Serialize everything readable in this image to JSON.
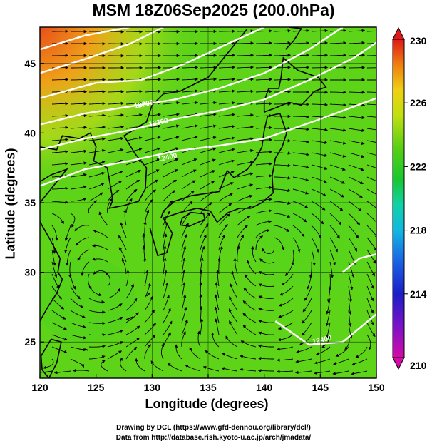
{
  "title": "MSM 18Z06Sep2025 (200.0hPa)",
  "chart_data": {
    "type": "heatmap",
    "title": "MSM 18Z06Sep2025 (200.0hPa)",
    "xlabel": "Longitude (degrees)",
    "ylabel": "Latitude  (degrees)",
    "xlim": [
      120,
      150
    ],
    "ylim": [
      22.4,
      47.6
    ],
    "x_ticks": [
      120,
      125,
      130,
      135,
      140,
      145,
      150
    ],
    "y_ticks": [
      25,
      30,
      35,
      40,
      45
    ],
    "grid": true,
    "colorbar": {
      "min": 210,
      "max": 230,
      "ticks": [
        210,
        214,
        218,
        222,
        226,
        230
      ]
    },
    "contour_labels": [
      {
        "text": "12200",
        "lon": 129.3,
        "lat": 41.9
      },
      {
        "text": "12300",
        "lon": 130.6,
        "lat": 40.6
      },
      {
        "text": "12400",
        "lon": 131.4,
        "lat": 38.1
      },
      {
        "text": "12400",
        "lon": 145.2,
        "lat": 25.0
      }
    ],
    "vortices": [
      {
        "lon": 125.7,
        "lat": 29.2,
        "sense": "cyclonic"
      },
      {
        "lon": 140.5,
        "lat": 32.0,
        "sense": "anticyclonic"
      }
    ]
  },
  "credits": {
    "line1": "Drawing by DCL (https://www.gfd-dennou.org/library/dcl/)",
    "line2": "Data from http://database.rish.kyoto-u.ac.jp/arch/jmadata/"
  }
}
